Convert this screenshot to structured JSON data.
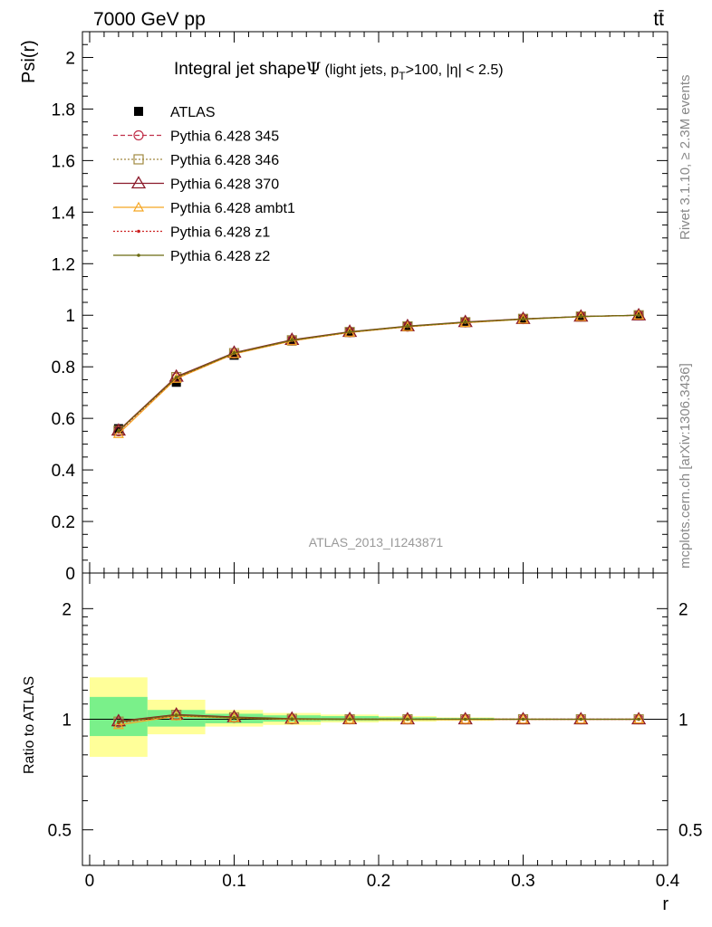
{
  "header": {
    "left": "7000 GeV pp",
    "right": "tt̄"
  },
  "side_text": {
    "rivet": "Rivet 3.1.10, ≥ 2.3M events",
    "mcplots": "mcplots.cern.ch [arXiv:1306.3436]"
  },
  "colors": {
    "ATLAS": "#000000",
    "Pythia 6.428 345": "#c0304a",
    "Pythia 6.428 346": "#a08840",
    "Pythia 6.428 370": "#8b1a2b",
    "Pythia 6.428 ambt1": "#f5a623",
    "Pythia 6.428 z1": "#cc2222",
    "Pythia 6.428 z2": "#6b6b10",
    "band_inner": "#7af08a",
    "band_outer": "#ffff99"
  },
  "chart_data": [
    {
      "type": "line",
      "title_main": "Integral jet shape",
      "title_symbol": "Ψ",
      "title_detail_prefix": "(light jets, p",
      "title_detail_sub": "T",
      "title_detail_suffix": ">100, |η| < 2.5)",
      "watermark": "ATLAS_2013_I1243871",
      "ylabel": "Psi(r)",
      "xlim": [
        -0.005,
        0.4
      ],
      "ylim": [
        0,
        2.1
      ],
      "yticks": [
        "0",
        "0.2",
        "0.4",
        "0.6",
        "0.8",
        "1",
        "1.2",
        "1.4",
        "1.6",
        "1.8",
        "2"
      ],
      "x": [
        0.02,
        0.06,
        0.1,
        0.14,
        0.18,
        0.22,
        0.26,
        0.3,
        0.34,
        0.38
      ],
      "legend_position": "top-left",
      "series": [
        {
          "name": "ATLAS",
          "marker": "square",
          "values": [
            0.56,
            0.74,
            0.845,
            0.9,
            0.935,
            0.958,
            0.973,
            0.985,
            0.995,
            1.0
          ]
        },
        {
          "name": "Pythia 6.428 345",
          "marker": "circle",
          "dash": "5,3",
          "values": [
            0.55,
            0.758,
            0.852,
            0.902,
            0.934,
            0.956,
            0.972,
            0.985,
            0.995,
            1.0
          ]
        },
        {
          "name": "Pythia 6.428 346",
          "marker": "square-open",
          "dash": "2,2",
          "values": [
            0.552,
            0.76,
            0.853,
            0.903,
            0.935,
            0.957,
            0.973,
            0.986,
            0.995,
            1.0
          ]
        },
        {
          "name": "Pythia 6.428 370",
          "marker": "triangle",
          "dash": "",
          "values": [
            0.553,
            0.762,
            0.855,
            0.905,
            0.936,
            0.958,
            0.974,
            0.986,
            0.995,
            1.0
          ]
        },
        {
          "name": "Pythia 6.428 ambt1",
          "marker": "triangle-small",
          "dash": "",
          "values": [
            0.54,
            0.754,
            0.85,
            0.9,
            0.933,
            0.955,
            0.971,
            0.984,
            0.994,
            1.0
          ]
        },
        {
          "name": "Pythia 6.428 z1",
          "marker": "dot",
          "dash": "2,2",
          "values": [
            0.548,
            0.757,
            0.852,
            0.902,
            0.934,
            0.956,
            0.972,
            0.985,
            0.995,
            1.0
          ]
        },
        {
          "name": "Pythia 6.428 z2",
          "marker": "dot",
          "dash": "",
          "values": [
            0.551,
            0.759,
            0.853,
            0.903,
            0.935,
            0.957,
            0.973,
            0.985,
            0.995,
            1.0
          ]
        }
      ]
    },
    {
      "type": "line",
      "ylabel": "Ratio to ATLAS",
      "xlabel": "r",
      "scale": "log",
      "ylim": [
        0.4,
        2.5
      ],
      "yticks": [
        "0.5",
        "1",
        "2"
      ],
      "xticks": [
        "0",
        "0.1",
        "0.2",
        "0.3",
        "0.4"
      ],
      "x": [
        0.02,
        0.06,
        0.1,
        0.14,
        0.18,
        0.22,
        0.26,
        0.3,
        0.34,
        0.38
      ],
      "bins": [
        [
          0.0,
          0.04
        ],
        [
          0.04,
          0.08
        ],
        [
          0.08,
          0.12
        ],
        [
          0.12,
          0.16
        ],
        [
          0.16,
          0.2
        ],
        [
          0.2,
          0.24
        ],
        [
          0.24,
          0.28
        ],
        [
          0.28,
          0.32
        ],
        [
          0.32,
          0.36
        ],
        [
          0.36,
          0.4
        ]
      ],
      "band_inner": [
        [
          0.9,
          1.15
        ],
        [
          0.955,
          1.06
        ],
        [
          0.975,
          1.035
        ],
        [
          0.985,
          1.025
        ],
        [
          0.99,
          1.02
        ],
        [
          0.993,
          1.012
        ],
        [
          0.995,
          1.008
        ],
        [
          0.998,
          1.003
        ],
        [
          0.999,
          1.001
        ],
        [
          1.0,
          1.0
        ]
      ],
      "band_outer": [
        [
          0.79,
          1.3
        ],
        [
          0.91,
          1.13
        ],
        [
          0.955,
          1.06
        ],
        [
          0.965,
          1.04
        ],
        [
          0.98,
          1.03
        ],
        [
          0.985,
          1.02
        ],
        [
          0.99,
          1.012
        ],
        [
          0.997,
          1.005
        ],
        [
          0.999,
          1.002
        ],
        [
          1.0,
          1.0
        ]
      ],
      "series": [
        {
          "name": "Pythia 6.428 345",
          "values": [
            0.98,
            1.025,
            1.01,
            1.0,
            1.0,
            1.0,
            1.0,
            1.0,
            1.0,
            1.0
          ]
        },
        {
          "name": "Pythia 6.428 346",
          "values": [
            0.985,
            1.028,
            1.012,
            1.002,
            1.0,
            1.0,
            1.0,
            1.0,
            1.0,
            1.0
          ]
        },
        {
          "name": "Pythia 6.428 370",
          "values": [
            0.988,
            1.03,
            1.014,
            1.004,
            1.001,
            1.0,
            1.0,
            1.0,
            1.0,
            1.0
          ]
        },
        {
          "name": "Pythia 6.428 ambt1",
          "values": [
            0.965,
            1.02,
            1.008,
            1.0,
            0.998,
            0.998,
            0.998,
            0.999,
            0.999,
            1.0
          ]
        },
        {
          "name": "Pythia 6.428 z1",
          "values": [
            0.978,
            1.023,
            1.009,
            1.0,
            1.0,
            1.0,
            1.0,
            1.0,
            1.0,
            1.0
          ]
        },
        {
          "name": "Pythia 6.428 z2",
          "values": [
            0.984,
            1.026,
            1.01,
            1.002,
            1.0,
            1.0,
            1.0,
            1.0,
            1.0,
            1.0
          ]
        }
      ]
    }
  ]
}
